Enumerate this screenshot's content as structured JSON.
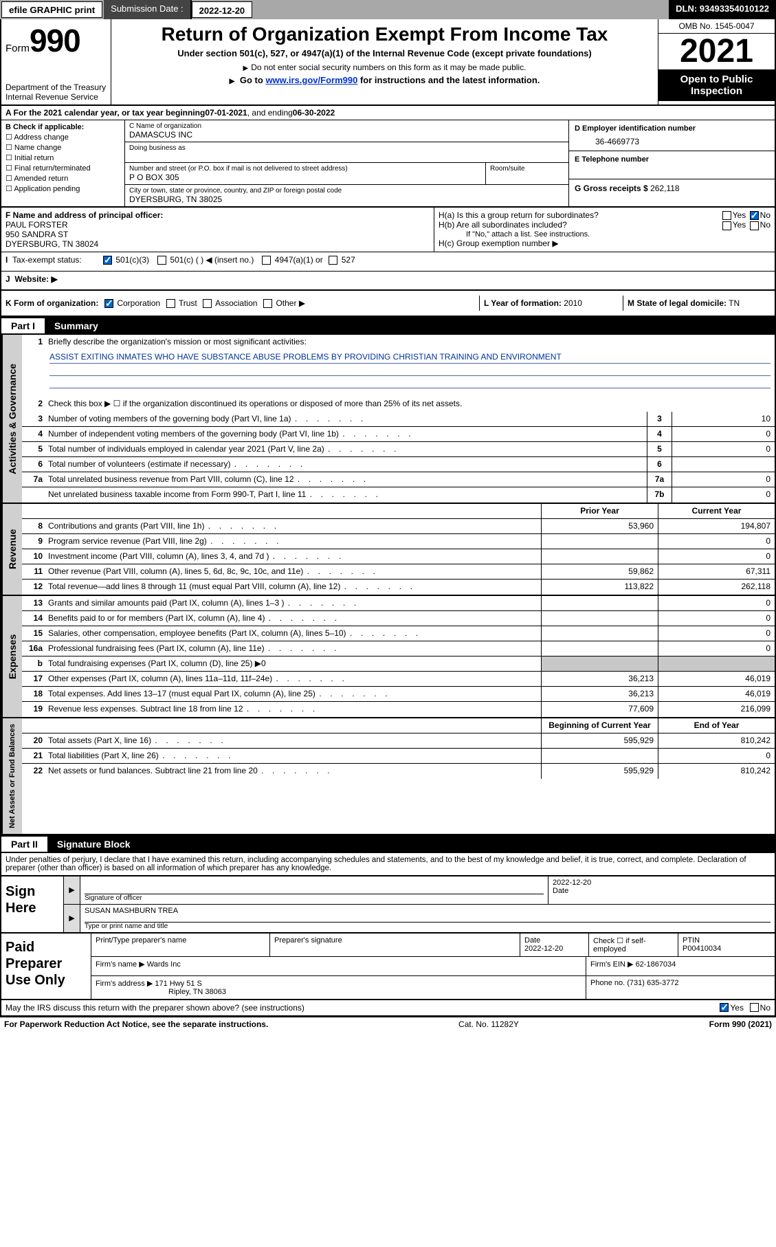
{
  "topbar": {
    "graphic_btn": "efile GRAPHIC print",
    "submission_label": "Submission Date :",
    "submission_date": "2022-12-20",
    "dln": "DLN: 93493354010122"
  },
  "header": {
    "form_prefix": "Form",
    "form_no": "990",
    "dept": "Department of the Treasury",
    "irs": "Internal Revenue Service",
    "title": "Return of Organization Exempt From Income Tax",
    "subtitle": "Under section 501(c), 527, or 4947(a)(1) of the Internal Revenue Code (except private foundations)",
    "note1": "Do not enter social security numbers on this form as it may be made public.",
    "note2_pre": "Go to ",
    "note2_link": "www.irs.gov/Form990",
    "note2_post": " for instructions and the latest information.",
    "omb": "OMB No. 1545-0047",
    "year": "2021",
    "opentext": "Open to Public Inspection"
  },
  "row_a": {
    "text_pre": "A For the 2021 calendar year, or tax year beginning ",
    "begin": "07-01-2021",
    "mid": " , and ending ",
    "end": "06-30-2022"
  },
  "section_b": {
    "label": "B Check if applicable:",
    "items": [
      "Address change",
      "Name change",
      "Initial return",
      "Final return/terminated",
      "Amended return",
      "Application pending"
    ]
  },
  "section_c": {
    "name_lbl": "C Name of organization",
    "name": "DAMASCUS INC",
    "dba_lbl": "Doing business as",
    "dba": "",
    "addr_lbl": "Number and street (or P.O. box if mail is not delivered to street address)",
    "room_lbl": "Room/suite",
    "addr": "P O BOX 305",
    "city_lbl": "City or town, state or province, country, and ZIP or foreign postal code",
    "city": "DYERSBURG, TN  38025"
  },
  "section_d": {
    "ein_lbl": "D Employer identification number",
    "ein": "36-4669773",
    "tel_lbl": "E Telephone number",
    "tel": "",
    "gross_lbl": "G Gross receipts $",
    "gross": "262,118"
  },
  "section_f": {
    "label": "F Name and address of principal officer:",
    "name": "PAUL FORSTER",
    "addr1": "950 SANDRA ST",
    "addr2": "DYERSBURG, TN  38024"
  },
  "section_h": {
    "ha": "H(a)  Is this a group return for subordinates?",
    "hb": "H(b)  Are all subordinates included?",
    "hb_note": "If \"No,\" attach a list. See instructions.",
    "hc": "H(c)  Group exemption number ▶",
    "yes": "Yes",
    "no": "No"
  },
  "section_i": {
    "label": "Tax-exempt status:",
    "opt1": "501(c)(3)",
    "opt2": "501(c) (  ) ◀ (insert no.)",
    "opt3": "4947(a)(1) or",
    "opt4": "527"
  },
  "section_j": {
    "label": "Website: ▶",
    "value": ""
  },
  "section_k": {
    "label": "K Form of organization:",
    "opts": [
      "Corporation",
      "Trust",
      "Association",
      "Other ▶"
    ]
  },
  "section_l": {
    "label": "L Year of formation:",
    "value": "2010"
  },
  "section_m": {
    "label": "M State of legal domicile:",
    "value": "TN"
  },
  "part1": {
    "bar_num": "Part I",
    "bar_title": "Summary",
    "mission_lbl": "Briefly describe the organization's mission or most significant activities:",
    "mission": "ASSIST EXITING INMATES WHO HAVE SUBSTANCE ABUSE PROBLEMS BY PROVIDING CHRISTIAN TRAINING AND ENVIRONMENT",
    "line2": "Check this box ▶ ☐  if the organization discontinued its operations or disposed of more than 25% of its net assets.",
    "governance": [
      {
        "n": "3",
        "d": "Number of voting members of the governing body (Part VI, line 1a)",
        "c": "3",
        "v": "10"
      },
      {
        "n": "4",
        "d": "Number of independent voting members of the governing body (Part VI, line 1b)",
        "c": "4",
        "v": "0"
      },
      {
        "n": "5",
        "d": "Total number of individuals employed in calendar year 2021 (Part V, line 2a)",
        "c": "5",
        "v": "0"
      },
      {
        "n": "6",
        "d": "Total number of volunteers (estimate if necessary)",
        "c": "6",
        "v": ""
      },
      {
        "n": "7a",
        "d": "Total unrelated business revenue from Part VIII, column (C), line 12",
        "c": "7a",
        "v": "0"
      },
      {
        "n": "",
        "d": "Net unrelated business taxable income from Form 990-T, Part I, line 11",
        "c": "7b",
        "v": "0"
      }
    ],
    "col_prior": "Prior Year",
    "col_curr": "Current Year",
    "revenue": [
      {
        "n": "8",
        "d": "Contributions and grants (Part VIII, line 1h)",
        "p": "53,960",
        "c": "194,807"
      },
      {
        "n": "9",
        "d": "Program service revenue (Part VIII, line 2g)",
        "p": "",
        "c": "0"
      },
      {
        "n": "10",
        "d": "Investment income (Part VIII, column (A), lines 3, 4, and 7d )",
        "p": "",
        "c": "0"
      },
      {
        "n": "11",
        "d": "Other revenue (Part VIII, column (A), lines 5, 6d, 8c, 9c, 10c, and 11e)",
        "p": "59,862",
        "c": "67,311"
      },
      {
        "n": "12",
        "d": "Total revenue—add lines 8 through 11 (must equal Part VIII, column (A), line 12)",
        "p": "113,822",
        "c": "262,118"
      }
    ],
    "expenses": [
      {
        "n": "13",
        "d": "Grants and similar amounts paid (Part IX, column (A), lines 1–3 )",
        "p": "",
        "c": "0"
      },
      {
        "n": "14",
        "d": "Benefits paid to or for members (Part IX, column (A), line 4)",
        "p": "",
        "c": "0"
      },
      {
        "n": "15",
        "d": "Salaries, other compensation, employee benefits (Part IX, column (A), lines 5–10)",
        "p": "",
        "c": "0"
      },
      {
        "n": "16a",
        "d": "Professional fundraising fees (Part IX, column (A), line 11e)",
        "p": "",
        "c": "0"
      },
      {
        "n": "b",
        "d": "Total fundraising expenses (Part IX, column (D), line 25) ▶0",
        "p": "GRAY",
        "c": "GRAY"
      },
      {
        "n": "17",
        "d": "Other expenses (Part IX, column (A), lines 11a–11d, 11f–24e)",
        "p": "36,213",
        "c": "46,019"
      },
      {
        "n": "18",
        "d": "Total expenses. Add lines 13–17 (must equal Part IX, column (A), line 25)",
        "p": "36,213",
        "c": "46,019"
      },
      {
        "n": "19",
        "d": "Revenue less expenses. Subtract line 18 from line 12",
        "p": "77,609",
        "c": "216,099"
      }
    ],
    "col_begin": "Beginning of Current Year",
    "col_end": "End of Year",
    "netassets": [
      {
        "n": "20",
        "d": "Total assets (Part X, line 16)",
        "p": "595,929",
        "c": "810,242"
      },
      {
        "n": "21",
        "d": "Total liabilities (Part X, line 26)",
        "p": "",
        "c": "0"
      },
      {
        "n": "22",
        "d": "Net assets or fund balances. Subtract line 21 from line 20",
        "p": "595,929",
        "c": "810,242"
      }
    ],
    "side_gov": "Activities & Governance",
    "side_rev": "Revenue",
    "side_exp": "Expenses",
    "side_net": "Net Assets or Fund Balances"
  },
  "part2": {
    "bar_num": "Part II",
    "bar_title": "Signature Block",
    "declare": "Under penalties of perjury, I declare that I have examined this return, including accompanying schedules and statements, and to the best of my knowledge and belief, it is true, correct, and complete. Declaration of preparer (other than officer) is based on all information of which preparer has any knowledge.",
    "sign_here": "Sign Here",
    "sig_officer_lbl": "Signature of officer",
    "sig_date_lbl": "Date",
    "sig_date": "2022-12-20",
    "sig_name": "SUSAN MASHBURN TREA",
    "sig_name_lbl": "Type or print name and title",
    "paid": "Paid Preparer Use Only",
    "prep_name_lbl": "Print/Type preparer's name",
    "prep_sig_lbl": "Preparer's signature",
    "prep_date_lbl": "Date",
    "prep_date": "2022-12-20",
    "prep_check_lbl": "Check ☐ if self-employed",
    "ptin_lbl": "PTIN",
    "ptin": "P00410034",
    "firm_name_lbl": "Firm's name    ▶",
    "firm_name": "Wards Inc",
    "firm_ein_lbl": "Firm's EIN ▶",
    "firm_ein": "62-1867034",
    "firm_addr_lbl": "Firm's address ▶",
    "firm_addr1": "171 Hwy 51 S",
    "firm_addr2": "Ripley, TN  38063",
    "phone_lbl": "Phone no.",
    "phone": "(731) 635-3772",
    "may_irs": "May the IRS discuss this return with the preparer shown above? (see instructions)",
    "may_yes": "Yes",
    "may_no": "No"
  },
  "footer": {
    "left": "For Paperwork Reduction Act Notice, see the separate instructions.",
    "mid": "Cat. No. 11282Y",
    "right": "Form 990 (2021)"
  }
}
